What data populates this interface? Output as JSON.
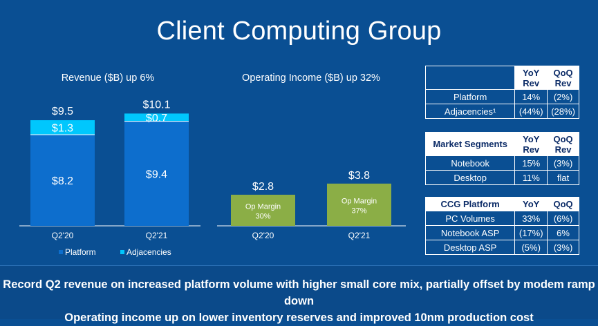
{
  "title": "Client Computing Group",
  "colors": {
    "background": "#0a4f93",
    "platform": "#0d6ecd",
    "adjacencies": "#00c7fd",
    "op_income": "#8bae46",
    "banner": "#0b4a8a"
  },
  "chart_data": [
    {
      "type": "bar",
      "stacked": true,
      "title": "Revenue ($B) up 6%",
      "categories": [
        "Q2'20",
        "Q2'21"
      ],
      "series": [
        {
          "name": "Platform",
          "values": [
            8.2,
            9.4
          ],
          "labels": [
            "$8.2",
            "$9.4"
          ]
        },
        {
          "name": "Adjacencies",
          "values": [
            1.3,
            0.7
          ],
          "labels": [
            "$1.3",
            "$0.7"
          ]
        }
      ],
      "totals": [
        9.5,
        10.1
      ],
      "total_labels": [
        "$9.5",
        "$10.1"
      ],
      "ylim": [
        0,
        11
      ]
    },
    {
      "type": "bar",
      "title": "Operating Income ($B) up 32%",
      "categories": [
        "Q2'20",
        "Q2'21"
      ],
      "values": [
        2.8,
        3.8
      ],
      "value_labels": [
        "$2.8",
        "$3.8"
      ],
      "bar_labels": [
        [
          "Op Margin",
          "30%"
        ],
        [
          "Op Margin",
          "37%"
        ]
      ],
      "ylim": [
        0,
        11
      ]
    }
  ],
  "tables": {
    "revenue": {
      "headers": [
        "",
        "YoY Rev",
        "QoQ Rev"
      ],
      "rows": [
        [
          "Platform",
          "14%",
          "(2%)"
        ],
        [
          "Adjacencies¹",
          "(44%)",
          "(28%)"
        ]
      ]
    },
    "segments": {
      "headers": [
        "Market Segments",
        "YoY Rev",
        "QoQ Rev"
      ],
      "rows": [
        [
          "Notebook",
          "15%",
          "(3%)"
        ],
        [
          "Desktop",
          "11%",
          "flat"
        ]
      ]
    },
    "platform": {
      "headers": [
        "CCG Platform",
        "YoY",
        "QoQ"
      ],
      "rows": [
        [
          "PC Volumes",
          "33%",
          "(6%)"
        ],
        [
          "Notebook ASP",
          "(17%)",
          "6%"
        ],
        [
          "Desktop ASP",
          "(5%)",
          "(3%)"
        ]
      ]
    }
  },
  "banner": {
    "line1": "Record Q2 revenue on increased platform volume with higher small core mix, partially offset by modem ramp down",
    "line2": "Operating income up on lower inventory reserves and improved 10nm production cost"
  }
}
